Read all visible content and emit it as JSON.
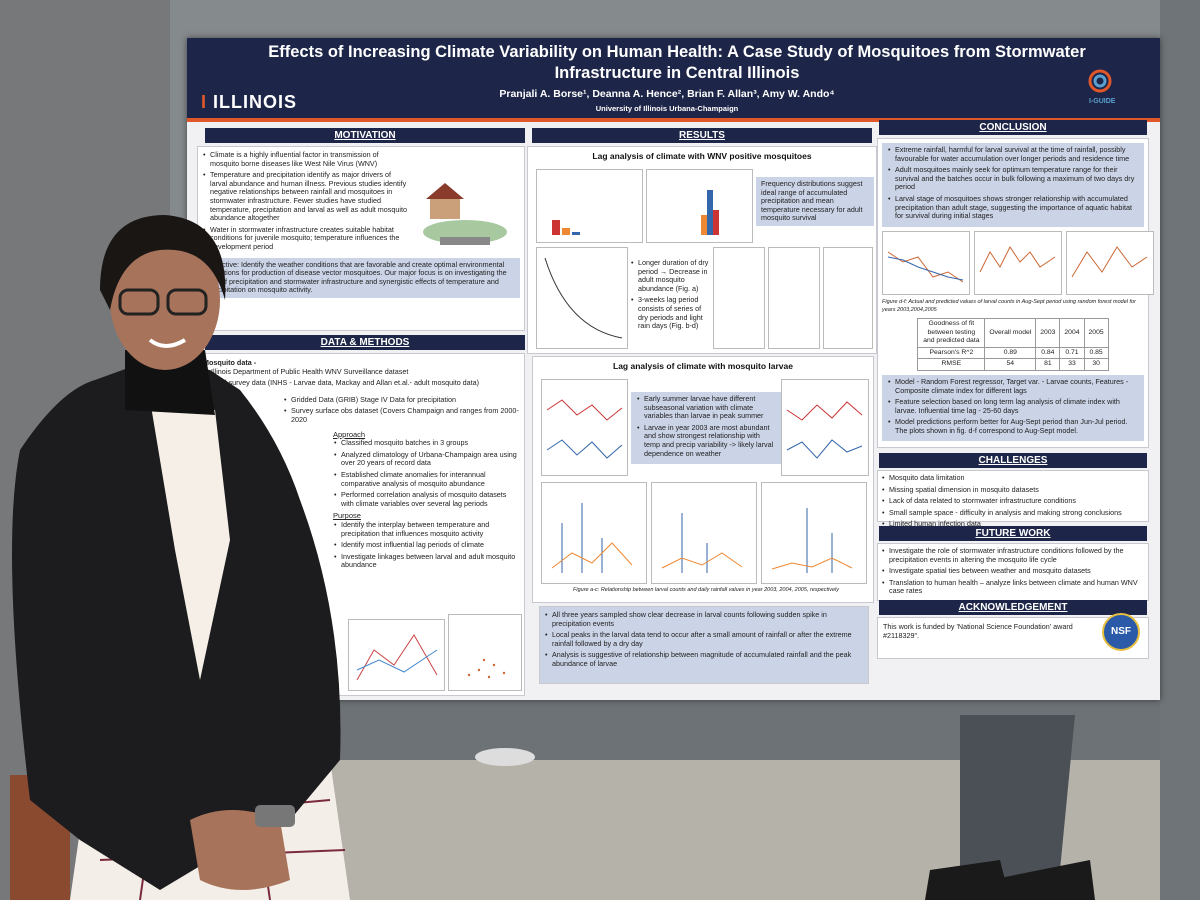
{
  "poster": {
    "title": "Effects of Increasing Climate Variability on Human Health: A Case Study of Mosquitoes from Stormwater Infrastructure in Central Illinois",
    "authors": "Pranjali A. Borse¹, Deanna A. Hence², Brian F. Allan³, Amy W. Ando⁴",
    "affiliation": "University of Illinois Urbana-Champaign",
    "logo_left": "ILLINOIS",
    "logo_right": "I-GUIDE",
    "motivation": {
      "heading": "MOTIVATION",
      "items": [
        "Climate is a highly influential factor in transmission of mosquito borne diseases like West Nile Virus (WNV)",
        "Temperature and precipitation identify as major drivers of larval abundance and human illness. Previous studies identify negative relationships between rainfall and mosquitoes in stormwater infrastructure. Fewer studies have studied temperature, precipitation and larval as well as adult mosquito abundance altogether",
        "Water in stormwater infrastructure creates suitable habitat conditions for juvenile mosquito; temperature influences the development period"
      ],
      "objective": "Objective: Identify the weather conditions that are favorable and create optimal environmental conditions for production of disease vector mosquitoes. Our major focus is on investigating the role of precipitation and stormwater infrastructure and synergistic effects of temperature and precipitation on mosquito activity."
    },
    "methods": {
      "heading": "DATA & METHODS",
      "mosquito_label": "Mosquito data -",
      "mosquito_items": [
        "Illinois Department of Public Health WNV Surveillance dataset",
        "Field survey data (INHS - Larvae data, Mackay and Allan et.al.- adult mosquito data)"
      ],
      "climate_items": [
        "Gridded Data (GRIB) Stage IV Data for precipitation",
        "Survey surface obs dataset (Covers Champaign and ranges from 2000-2020"
      ],
      "approach_label": "Approach",
      "approach_items": [
        "Classified mosquito batches in 3 groups",
        "Analyzed climatology of Urbana-Champaign area using over 20 years of record data",
        "Established climate anomalies for interannual comparative analysis of mosquito abundance",
        "Performed correlation analysis of mosquito datasets with climate variables over several lag periods"
      ],
      "purpose_label": "Purpose",
      "purpose_items": [
        "Identify the interplay between temperature and precipitation that influences mosquito activity",
        "Identify most influential lag periods of climate",
        "Investigate linkages between larval and adult mosquito abundance"
      ]
    },
    "results": {
      "heading": "RESULTS",
      "panel1_title": "Lag analysis of climate with WNV positive mosquitoes",
      "panel1_note": "Frequency distributions suggest ideal range of accumulated precipitation and mean temperature necessary for adult mosquito survival",
      "panel1_items": [
        "Longer duration of dry period → Decrease in adult mosquito abundance (Fig. a)",
        "3-weeks lag period consists of series of dry periods and light rain days (Fig. b-d)"
      ],
      "panel2_title": "Lag analysis of climate with mosquito larvae",
      "panel2_items": [
        "Early summer larvae have different subseasonal variation with climate variables than larvae in peak summer",
        "Larvae in year 2003 are most abundant and show strongest relationship with temp and precip variability -> likely larval dependence on weather"
      ],
      "caption": "Figure a-c: Relationship between larval counts and daily rainfall values in year 2003, 2004, 2005, respectively",
      "items": [
        "All three years sampled show clear decrease in larval counts following sudden spike in precipitation events",
        "Local peaks in the larval data tend to occur after a small amount of rainfall or after the extreme rainfall followed by a dry day",
        "Analysis is suggestive of relationship between magnitude of accumulated rainfall and the peak abundance of larvae"
      ]
    },
    "conclusion": {
      "heading": "CONCLUSION",
      "items": [
        "Extreme rainfall, harmful for larval survival at the time of rainfall, possibly favourable for water accumulation over longer periods and residence time",
        "Adult mosquitoes mainly seek for optimum temperature range for their survival and the batches occur in bulk following a maximum of two days dry period",
        "Larval stage of mosquitoes shows stronger relationship with accumulated precipitation than adult stage, suggesting the importance of aquatic habitat for survival during initial stages"
      ],
      "caption": "Figure d-f: Actual and predicted values of larval counts in Aug-Sept period using random forest model for years 2003,2004,2005",
      "table": {
        "header": [
          "Goodness of fit between testing and predicted data",
          "Overall model",
          "2003",
          "2004",
          "2005"
        ],
        "rows": [
          [
            "Pearson's R^2",
            0.89,
            0.84,
            0.71,
            0.85
          ],
          [
            "RMSE",
            54,
            81,
            33,
            30
          ]
        ]
      },
      "model_items": [
        "Model - Random Forest regressor, Target var. - Larvae counts, Features - Composite climate index for different lags",
        "Feature selection based on long term lag analysis of climate index with larvae. Influential time lag - 25-60 days",
        "Model predictions perform better for Aug-Sept period than Jun-Jul period. The plots shown in fig. d-f correspond to Aug-Sept model."
      ]
    },
    "challenges": {
      "heading": "CHALLENGES",
      "items": [
        "Mosquito data limitation",
        "Missing spatial dimension in mosquito datasets",
        "Lack of data related to stormwater infrastructure conditions",
        "Small sample space - difficulty in analysis and making strong conclusions",
        "Limited human infection data"
      ]
    },
    "future_work": {
      "heading": "FUTURE WORK",
      "items": [
        "Investigate the role of stormwater infrastructure conditions followed by the precipitation events in altering the mosquito life cycle",
        "Investigate spatial ties between weather and mosquito datasets",
        "Translation to human health – analyze links between climate and human WNV case rates"
      ]
    },
    "acknowledgement": {
      "heading": "ACKNOWLEDGEMENT",
      "text": "This work is funded by 'National Science Foundation' award #2118329\"."
    },
    "nsf_logo": "NSF"
  }
}
